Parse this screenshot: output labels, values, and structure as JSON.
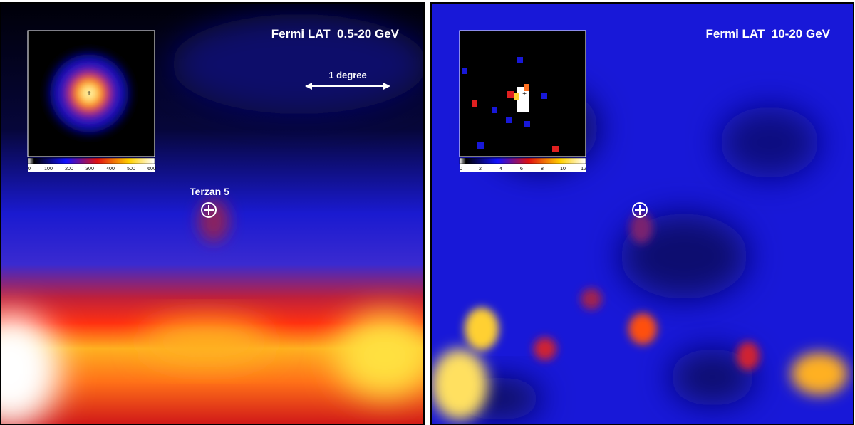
{
  "panels": [
    {
      "title": "Fermi LAT  0.5-20 GeV",
      "scale_label": "1 degree",
      "source_label": "Terzan 5",
      "colorbar_ticks": [
        "0",
        "100",
        "200",
        "300",
        "400",
        "500",
        "600"
      ]
    },
    {
      "title": "Fermi LAT  10-20 GeV",
      "colorbar_ticks": [
        "0",
        "2",
        "4",
        "6",
        "8",
        "10",
        "12"
      ]
    }
  ]
}
